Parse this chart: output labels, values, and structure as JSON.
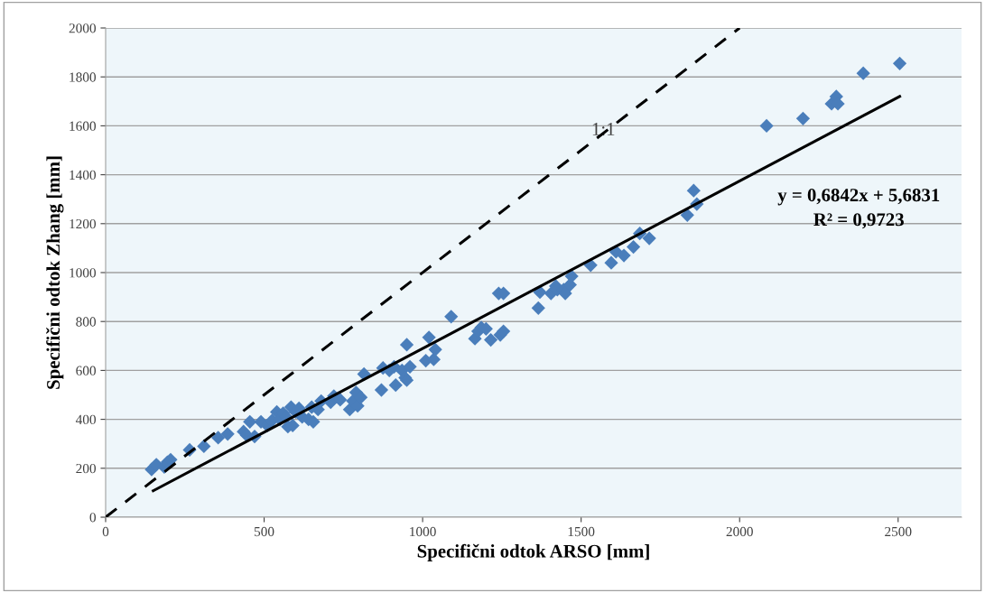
{
  "chart_data": {
    "type": "scatter",
    "xlabel": "Specifični odtok ARSO [mm]",
    "ylabel": "Specifični odtok Zhang [mm]",
    "xlim": [
      0,
      2700
    ],
    "xticks": [
      0,
      500,
      1000,
      1500,
      2000,
      2500
    ],
    "ylim": [
      0,
      2000
    ],
    "yticks": [
      0,
      200,
      400,
      600,
      800,
      1000,
      1200,
      1400,
      1600,
      1800,
      2000
    ],
    "grid": "y",
    "legend": false,
    "series": [
      {
        "marker": "diamond",
        "color": "#4a7ebb",
        "x": [
          145,
          160,
          185,
          195,
          205,
          265,
          310,
          355,
          385,
          435,
          445,
          455,
          470,
          490,
          510,
          525,
          540,
          550,
          560,
          570,
          575,
          585,
          590,
          600,
          610,
          620,
          640,
          650,
          655,
          670,
          680,
          710,
          720,
          740,
          770,
          780,
          790,
          795,
          805,
          815,
          870,
          875,
          895,
          910,
          915,
          935,
          945,
          950,
          950,
          960,
          1010,
          1020,
          1035,
          1040,
          1090,
          1165,
          1175,
          1185,
          1200,
          1215,
          1240,
          1255,
          1245,
          1255,
          1365,
          1370,
          1405,
          1420,
          1425,
          1445,
          1450,
          1465,
          1470,
          1530,
          1595,
          1610,
          1635,
          1665,
          1685,
          1715,
          1835,
          1855,
          1865,
          2085,
          2200,
          2290,
          2305,
          2310,
          2390,
          2505
        ],
        "values": [
          195,
          215,
          205,
          225,
          235,
          275,
          290,
          325,
          340,
          350,
          335,
          390,
          330,
          390,
          375,
          395,
          430,
          400,
          425,
          410,
          370,
          450,
          375,
          430,
          445,
          410,
          400,
          450,
          390,
          440,
          475,
          470,
          495,
          480,
          440,
          475,
          510,
          455,
          490,
          585,
          520,
          610,
          600,
          615,
          540,
          600,
          570,
          560,
          705,
          615,
          640,
          735,
          645,
          685,
          820,
          730,
          760,
          775,
          770,
          725,
          915,
          915,
          745,
          760,
          855,
          920,
          915,
          945,
          930,
          930,
          915,
          950,
          985,
          1030,
          1040,
          1085,
          1070,
          1105,
          1160,
          1140,
          1235,
          1335,
          1280,
          1600,
          1630,
          1690,
          1720,
          1690,
          1815,
          1855
        ]
      },
      {
        "type": "line",
        "line_style": "solid",
        "color": "#000000",
        "x": [
          150,
          2505
        ],
        "values": [
          108,
          1720
        ]
      },
      {
        "type": "line",
        "line_style": "dashed",
        "color": "#000000",
        "x": [
          0,
          2000
        ],
        "values": [
          0,
          2000
        ]
      }
    ],
    "annotations": [
      {
        "text": "1:1",
        "x": 1570,
        "y": 1580
      },
      "y = 0,6842x + 5,6831",
      "R² = 0,9723"
    ]
  }
}
